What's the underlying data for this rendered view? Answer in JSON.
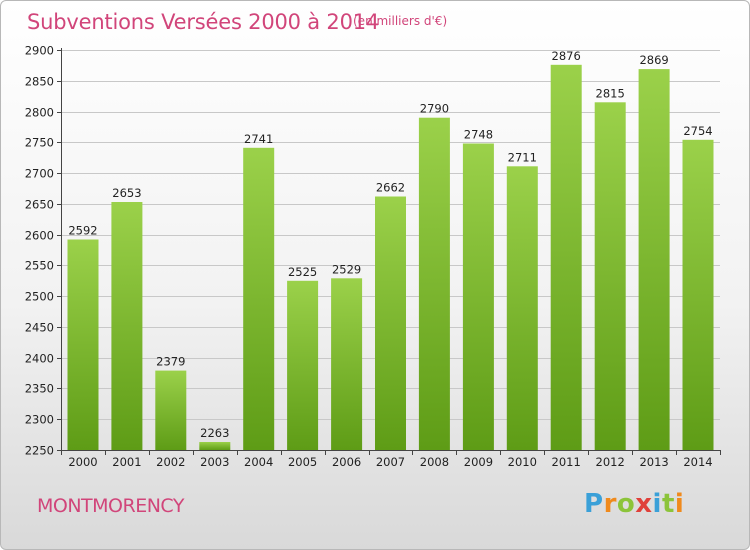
{
  "title": "Subventions Versées 2000 à 2014",
  "subtitle": "(en milliers d'€)",
  "location": "MONTMORENCY",
  "brand": {
    "text": "Proxiti",
    "letters": [
      "P",
      "r",
      "o",
      "x",
      "i",
      "t",
      "i"
    ]
  },
  "colors": {
    "bar_light": "#9bd14a",
    "bar_dark": "#5e9c16",
    "title": "#d1457a",
    "grid": "#c8c8c8"
  },
  "chart_data": {
    "type": "bar",
    "categories": [
      "2000",
      "2001",
      "2002",
      "2003",
      "2004",
      "2005",
      "2006",
      "2007",
      "2008",
      "2009",
      "2010",
      "2011",
      "2012",
      "2013",
      "2014"
    ],
    "values": [
      2592,
      2653,
      2379,
      2263,
      2741,
      2525,
      2529,
      2662,
      2790,
      2748,
      2711,
      2876,
      2815,
      2869,
      2754
    ],
    "yticks": [
      2250,
      2300,
      2350,
      2400,
      2450,
      2500,
      2550,
      2600,
      2650,
      2700,
      2750,
      2800,
      2850,
      2900
    ],
    "ylim": [
      2250,
      2900
    ],
    "grid": true,
    "data_labels": true
  }
}
